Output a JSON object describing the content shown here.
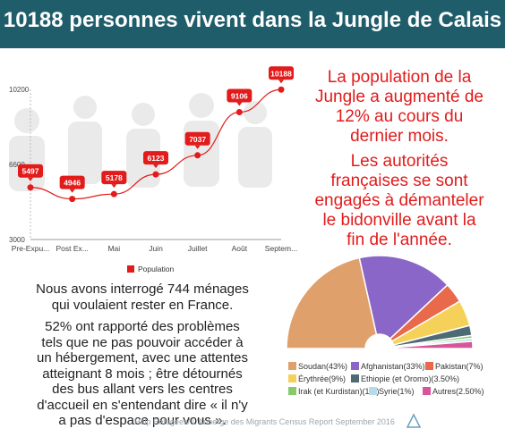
{
  "header": {
    "title": "10188 personnes vivent dans la Jungle de Calais"
  },
  "right_text": {
    "para1": [
      "La population de la",
      "Jungle a augmenté de",
      "12% au cours du",
      "dernier mois."
    ],
    "para2": [
      "Les autorités",
      "françaises se sont",
      "engagés à démanteler",
      "le bidonville avant la",
      "fin de l'année."
    ]
  },
  "left_text": {
    "para1": [
      "Nous avons interrogé 744 ménages",
      "qui voulaient rester en France."
    ],
    "para2": [
      "52% ont rapporté des problèmes",
      "tels que ne pas pouvoir accéder à",
      "un hébergement, avec une attentes",
      "atteignant 8 mois ; être détournés",
      "des bus allant vers les centres",
      "d'accueil en s'entendant dire « il n'y",
      "a pas d'espace pour vous »."
    ]
  },
  "footer": {
    "text": "Help Refugees/ L'Auberge des Migrants Census Report September 2016"
  },
  "colors": {
    "header": "#1f5d6b",
    "accent": "#e21b1b",
    "line": "#e21b1b"
  },
  "chart_data": [
    {
      "type": "line",
      "categories": [
        "Pre-Expu...",
        "Post Ex...",
        "Mai",
        "Juin",
        "Juillet",
        "Août",
        "Septem..."
      ],
      "series": [
        {
          "name": "Population",
          "values": [
            5497,
            4946,
            5178,
            6123,
            7037,
            9106,
            10188
          ]
        }
      ],
      "y_ticks": [
        "10200",
        "6600",
        "3000"
      ],
      "ylim": [
        3000,
        10200
      ],
      "legend": "bottom",
      "grid": false
    },
    {
      "type": "pie",
      "style": "half-donut",
      "slices": [
        {
          "label": "Soudan(43%)",
          "value": 43,
          "color": "#e0a06c"
        },
        {
          "label": "Afghanistan(33%)",
          "value": 33,
          "color": "#8a66c8"
        },
        {
          "label": "Pakistan(7%)",
          "value": 7,
          "color": "#e86a4a"
        },
        {
          "label": "Érythrée(9%)",
          "value": 9,
          "color": "#f5d15a"
        },
        {
          "label": "Ethiopie (et Oromo)(3.50%)",
          "value": 3.5,
          "color": "#4e6a74"
        },
        {
          "label": "Irak (et Kurdistan)(1%)",
          "value": 1,
          "color": "#88c96b"
        },
        {
          "label": "Syrie(1%)",
          "value": 1,
          "color": "#b8dbe8"
        },
        {
          "label": "Autres(2.50%)",
          "value": 2.5,
          "color": "#d9559a"
        }
      ],
      "legend": "bottom"
    }
  ]
}
